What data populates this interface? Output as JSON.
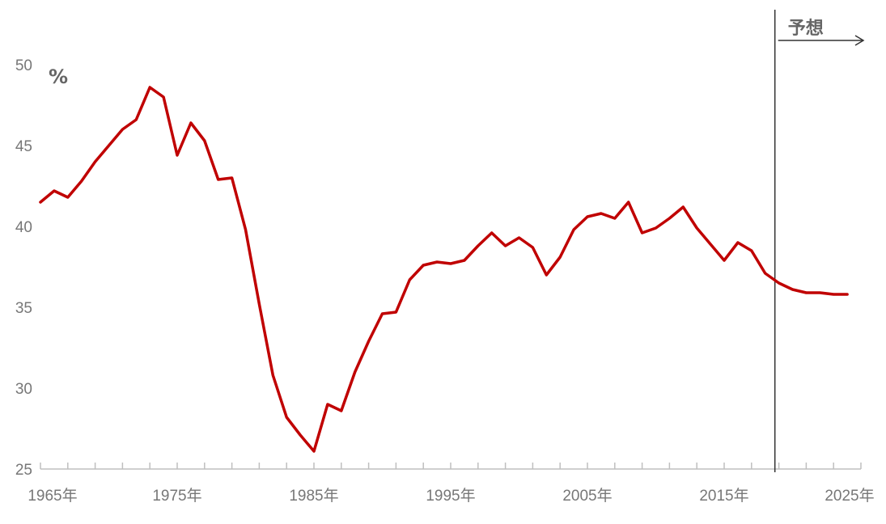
{
  "chart_data": {
    "type": "line",
    "title": "",
    "xlabel": "",
    "ylabel": "%",
    "xlim": [
      1965,
      2025
    ],
    "ylim": [
      25,
      50
    ],
    "y_ticks": [
      25,
      30,
      35,
      40,
      45,
      50
    ],
    "x_ticks": [
      {
        "value": 1965,
        "label": "1965年"
      },
      {
        "value": 1975,
        "label": "1975年"
      },
      {
        "value": 1985,
        "label": "1985年"
      },
      {
        "value": 1995,
        "label": "1995年"
      },
      {
        "value": 2005,
        "label": "2005年"
      },
      {
        "value": 2015,
        "label": "2015年"
      },
      {
        "value": 2025,
        "label": "2025年"
      }
    ],
    "grid": false,
    "forecast": {
      "start": 2018,
      "label": "予想"
    },
    "colors": {
      "line": "#c00000",
      "axis": "#bfbfbf",
      "divider": "#333333"
    },
    "series": [
      {
        "x": [
          1965,
          1966,
          1967,
          1968,
          1969,
          1970,
          1971,
          1972,
          1973,
          1974,
          1975,
          1976,
          1977,
          1978,
          1979,
          1980,
          1981,
          1982,
          1983,
          1984,
          1985,
          1986,
          1987,
          1988,
          1989,
          1990,
          1991,
          1992,
          1993,
          1994,
          1995,
          1996,
          1997,
          1998,
          1999,
          2000,
          2001,
          2002,
          2003,
          2004,
          2005,
          2006,
          2007,
          2008,
          2009,
          2010,
          2011,
          2012,
          2013,
          2014,
          2015,
          2016,
          2017,
          2018,
          2019,
          2020,
          2021,
          2022,
          2023,
          2024
        ],
        "values": [
          41.5,
          42.2,
          41.8,
          42.8,
          44.0,
          45.0,
          46.0,
          46.6,
          48.6,
          48.0,
          44.4,
          46.4,
          45.3,
          42.9,
          43.0,
          39.8,
          35.2,
          30.8,
          28.2,
          27.1,
          26.1,
          29.0,
          28.6,
          31.0,
          32.9,
          34.6,
          34.7,
          36.7,
          37.6,
          37.8,
          37.7,
          37.9,
          38.8,
          39.6,
          38.8,
          39.3,
          38.7,
          37.0,
          38.1,
          39.8,
          40.6,
          40.8,
          40.5,
          41.5,
          39.6,
          39.9,
          40.5,
          41.2,
          39.9,
          38.9,
          37.9,
          39.0,
          38.5,
          37.1,
          36.5,
          36.1,
          35.9,
          35.9,
          35.8,
          35.8
        ]
      }
    ]
  }
}
